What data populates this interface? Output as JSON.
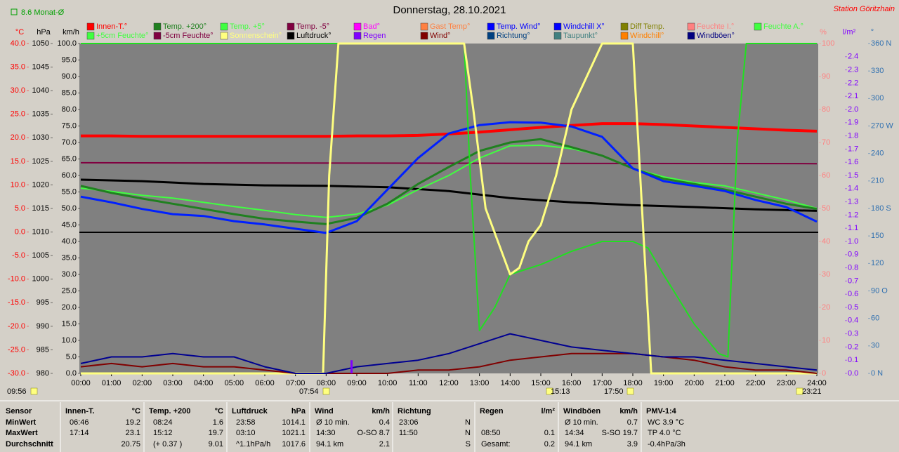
{
  "chart_data": {
    "type": "line",
    "title": "Donnerstag, 28.10.2021",
    "station": "Station Göritzhain",
    "month_avg": "8.6 Monat-Ø",
    "xlim": [
      0,
      24
    ],
    "xticks": [
      {
        "value": 0,
        "label": "00:00"
      },
      {
        "value": 1,
        "label": "01:00"
      },
      {
        "value": 2,
        "label": "02:00"
      },
      {
        "value": 3,
        "label": "03:00"
      },
      {
        "value": 4,
        "label": "04:00"
      },
      {
        "value": 5,
        "label": "05:00"
      },
      {
        "value": 6,
        "label": "06:00"
      },
      {
        "value": 7,
        "label": "07:00"
      },
      {
        "value": 8,
        "label": "08:00"
      },
      {
        "value": 9,
        "label": "09:00"
      },
      {
        "value": 10,
        "label": "10:00"
      },
      {
        "value": 11,
        "label": "11:00"
      },
      {
        "value": 12,
        "label": "12:00"
      },
      {
        "value": 13,
        "label": "13:00"
      },
      {
        "value": 14,
        "label": "14:00"
      },
      {
        "value": 15,
        "label": "15:00"
      },
      {
        "value": 16,
        "label": "16:00"
      },
      {
        "value": 17,
        "label": "17:00"
      },
      {
        "value": 18,
        "label": "18:00"
      },
      {
        "value": 19,
        "label": "19:00"
      },
      {
        "value": 20,
        "label": "20:00"
      },
      {
        "value": 21,
        "label": "21:00"
      },
      {
        "value": 22,
        "label": "22:00"
      },
      {
        "value": 23,
        "label": "23:00"
      },
      {
        "value": 24,
        "label": "24:00"
      }
    ],
    "axes": {
      "temp": {
        "label": "°C",
        "color": "#ff0000",
        "lim": [
          -30,
          40
        ],
        "ticks": [
          {
            "value": 40,
            "label": "40.0"
          },
          {
            "value": 35,
            "label": "35.0"
          },
          {
            "value": 30,
            "label": "30.0"
          },
          {
            "value": 25,
            "label": "25.0"
          },
          {
            "value": 20,
            "label": "20.0"
          },
          {
            "value": 15,
            "label": "15.0"
          },
          {
            "value": 10,
            "label": "10.0"
          },
          {
            "value": 5,
            "label": "5.0"
          },
          {
            "value": 0,
            "label": "0.0"
          },
          {
            "value": -5,
            "label": "-5.0"
          },
          {
            "value": -10,
            "label": "-10.0"
          },
          {
            "value": -15,
            "label": "-15.0"
          },
          {
            "value": -20,
            "label": "-20.0"
          },
          {
            "value": -25,
            "label": "-25.0"
          },
          {
            "value": -30,
            "label": "-30.0"
          }
        ]
      },
      "hpa": {
        "label": "hPa",
        "color": "#000000",
        "lim": [
          980,
          1050
        ],
        "ticks": [
          1050,
          1045,
          1040,
          1035,
          1030,
          1025,
          1020,
          1015,
          1010,
          1005,
          1000,
          995,
          990,
          985,
          980
        ]
      },
      "kmh": {
        "label": "km/h",
        "color": "#000000",
        "lim": [
          0,
          100
        ],
        "ticks": [
          {
            "value": 100,
            "label": "100.0"
          },
          {
            "value": 95,
            "label": "95.0"
          },
          {
            "value": 90,
            "label": "90.0"
          },
          {
            "value": 85,
            "label": "85.0"
          },
          {
            "value": 80,
            "label": "80.0"
          },
          {
            "value": 75,
            "label": "75.0"
          },
          {
            "value": 70,
            "label": "70.0"
          },
          {
            "value": 65,
            "label": "65.0"
          },
          {
            "value": 60,
            "label": "60.0"
          },
          {
            "value": 55,
            "label": "55.0"
          },
          {
            "value": 50,
            "label": "50.0"
          },
          {
            "value": 45,
            "label": "45.0"
          },
          {
            "value": 40,
            "label": "40.0"
          },
          {
            "value": 35,
            "label": "35.0"
          },
          {
            "value": 30,
            "label": "30.0"
          },
          {
            "value": 25,
            "label": "25.0"
          },
          {
            "value": 20,
            "label": "20.0"
          },
          {
            "value": 15,
            "label": "15.0"
          },
          {
            "value": 10,
            "label": "10.0"
          },
          {
            "value": 5,
            "label": "5.0"
          },
          {
            "value": 0,
            "label": "0.0"
          }
        ]
      },
      "pct": {
        "label": "%",
        "color": "#ff8080",
        "lim": [
          0,
          100
        ],
        "ticks": [
          100,
          90,
          80,
          70,
          60,
          50,
          40,
          30,
          20,
          10,
          0
        ]
      },
      "rain": {
        "label": "l/m²",
        "color": "#8000ff",
        "lim": [
          0,
          2.5
        ],
        "ticks": [
          2.4,
          2.3,
          2.2,
          2.1,
          {
            "value": 2,
            "label": "2.0"
          },
          1.9,
          1.8,
          1.7,
          1.6,
          1.5,
          1.4,
          1.3,
          1.2,
          1.1,
          {
            "value": 1,
            "label": "1.0"
          },
          0.9,
          0.8,
          0.7,
          0.6,
          0.5,
          0.4,
          0.3,
          0.2,
          0.1,
          {
            "value": 0,
            "label": "0.0"
          }
        ]
      },
      "dir": {
        "label": "°",
        "color": "#3070b0",
        "lim": [
          0,
          360
        ],
        "ticks": [
          {
            "value": 360,
            "label": "360 N"
          },
          330,
          300,
          {
            "value": 270,
            "label": "270 W"
          },
          240,
          210,
          {
            "value": 180,
            "label": "180 S"
          },
          150,
          120,
          {
            "value": 90,
            "label": "90 O"
          },
          60,
          30,
          {
            "value": 0,
            "label": "0 N"
          }
        ]
      }
    },
    "legend": [
      [
        {
          "name": "Innen-T.°",
          "color": "#ff0000"
        },
        {
          "name": "Temp. +200°",
          "color": "#208020"
        },
        {
          "name": "Temp. +5°",
          "color": "#40ff40"
        },
        {
          "name": "Temp. -5°",
          "color": "#800040"
        },
        {
          "name": "Bad°",
          "color": "#ff00ff"
        },
        {
          "name": "Gast Temp°",
          "color": "#ff8040"
        },
        {
          "name": "Temp. Wind°",
          "color": "#0000ff"
        },
        {
          "name": "Windchill X°",
          "color": "#0000ff"
        },
        {
          "name": "Diff Temp.",
          "color": "#808000"
        },
        {
          "name": "Feuchte I.°",
          "color": "#ff8080"
        },
        {
          "name": "Feuchte A.°",
          "color": "#40ff40"
        }
      ],
      [
        {
          "name": "+5cm Feuchte°",
          "color": "#40ff40"
        },
        {
          "name": "-5cm Feuchte°",
          "color": "#800040"
        },
        {
          "name": "Sonnenschein°",
          "color": "#ffff80"
        },
        {
          "name": "Luftdruck°",
          "color": "#000000"
        },
        {
          "name": "Regen",
          "color": "#8000ff"
        },
        {
          "name": "Wind°",
          "color": "#800000"
        },
        {
          "name": "Richtung°",
          "color": "#004080"
        },
        {
          "name": "Taupunkt°",
          "color": "#408080"
        },
        {
          "name": "Windchill°",
          "color": "#ff8000"
        },
        {
          "name": "Windböen°",
          "color": "#000080"
        }
      ]
    ],
    "series": [
      {
        "name": "Innen-T.°",
        "color": "#ff0000",
        "axis": "temp",
        "width": 4,
        "x": [
          0,
          1,
          2,
          3,
          4,
          5,
          6,
          7,
          8,
          9,
          10,
          11,
          12,
          13,
          14,
          15,
          16,
          17,
          18,
          19,
          20,
          21,
          22,
          23,
          24
        ],
        "values": [
          20.4,
          20.4,
          20.3,
          20.3,
          20.3,
          20.3,
          20.3,
          20.3,
          20.3,
          20.4,
          20.4,
          20.5,
          20.8,
          21.2,
          21.7,
          22.2,
          22.6,
          23.0,
          23.0,
          22.8,
          22.5,
          22.2,
          21.9,
          21.6,
          21.4
        ]
      },
      {
        "name": "Temp. -5°",
        "color": "#800040",
        "axis": "temp",
        "width": 2,
        "x": [
          0,
          24
        ],
        "values": [
          14.7,
          14.5
        ]
      },
      {
        "name": "Luftdruck°",
        "color": "#000000",
        "axis": "hpa",
        "width": 3,
        "x": [
          0,
          2,
          4,
          6,
          8,
          10,
          12,
          14,
          16,
          18,
          20,
          22,
          24
        ],
        "values": [
          1021.1,
          1020.8,
          1020.2,
          1019.9,
          1019.8,
          1019.5,
          1018.7,
          1017.2,
          1016.3,
          1015.7,
          1015.3,
          1014.8,
          1014.5
        ]
      },
      {
        "name": "Temp. +5°",
        "color": "#40ff40",
        "axis": "temp",
        "width": 2,
        "x": [
          0,
          1,
          2,
          3,
          4,
          5,
          6,
          7,
          8,
          9,
          10,
          11,
          12,
          13,
          14,
          15,
          16,
          17,
          18,
          19,
          20,
          21,
          22,
          23,
          24
        ],
        "values": [
          9.3,
          8.6,
          7.8,
          7.2,
          6.3,
          5.4,
          4.6,
          3.7,
          3.1,
          3.8,
          5.7,
          9.0,
          12.0,
          15.7,
          18.3,
          18.4,
          17.7,
          16.2,
          13.5,
          11.7,
          10.5,
          9.8,
          8.3,
          6.8,
          5.0
        ]
      },
      {
        "name": "Temp. +200°",
        "color": "#208020",
        "axis": "temp",
        "width": 3,
        "x": [
          0,
          1,
          2,
          3,
          4,
          5,
          6,
          7,
          8,
          9,
          10,
          11,
          12,
          13,
          14,
          15,
          16,
          17,
          18,
          19,
          20,
          21,
          22,
          23,
          24
        ],
        "values": [
          9.8,
          8.3,
          7.1,
          6.0,
          4.9,
          3.8,
          2.8,
          2.2,
          1.7,
          3.0,
          6.0,
          10.2,
          13.8,
          17.2,
          19.0,
          19.7,
          18.0,
          16.2,
          13.5,
          11.3,
          10.2,
          9.0,
          7.5,
          6.0,
          4.9
        ]
      },
      {
        "name": "Temp. Wind°",
        "color": "#0020ff",
        "axis": "temp",
        "width": 3,
        "x": [
          0,
          1,
          2,
          3,
          4,
          5,
          6,
          7,
          8,
          9,
          10,
          11,
          12,
          13,
          14,
          15,
          16,
          17,
          18,
          19,
          20,
          21,
          22,
          23,
          24
        ],
        "values": [
          7.5,
          6.3,
          4.9,
          3.8,
          3.4,
          2.3,
          1.6,
          0.7,
          -0.2,
          2.3,
          9.0,
          15.7,
          20.9,
          22.7,
          23.3,
          23.2,
          22.4,
          20.2,
          13.5,
          10.8,
          9.8,
          8.7,
          6.8,
          5.3,
          2.2
        ]
      },
      {
        "name": "Feuchte A.°",
        "color": "#20e020",
        "axis": "pct",
        "width": 2,
        "x": [
          0,
          12.5,
          12.7,
          13.0,
          13.5,
          14.0,
          15,
          16,
          17,
          18,
          18.5,
          19,
          20,
          20.8,
          21.1,
          21.4,
          21.7,
          24
        ],
        "values": [
          100,
          100,
          60,
          13,
          20,
          30,
          33,
          37,
          40,
          40,
          38,
          30,
          15,
          6,
          5,
          70,
          100,
          100
        ]
      },
      {
        "name": "Sonnenschein°",
        "color": "#ffff80",
        "axis": "pct",
        "width": 3,
        "x": [
          0,
          7.9,
          8.1,
          8.4,
          12.5,
          12.8,
          13.2,
          13.6,
          14.0,
          14.3,
          14.6,
          15.0,
          15.5,
          16.0,
          16.5,
          17.0,
          18.0,
          18.3,
          18.6,
          24
        ],
        "values": [
          0,
          0,
          60,
          100,
          100,
          80,
          50,
          40,
          30,
          32,
          40,
          45,
          60,
          80,
          90,
          100,
          100,
          50,
          0,
          0
        ]
      },
      {
        "name": "Wind°",
        "color": "#800000",
        "axis": "kmh",
        "width": 2,
        "x": [
          0,
          1,
          2,
          3,
          4,
          5,
          6,
          7,
          8,
          9,
          10,
          11,
          12,
          13,
          14,
          15,
          16,
          17,
          18,
          19,
          20,
          21,
          22,
          23,
          24
        ],
        "values": [
          2,
          3,
          2,
          3,
          2,
          2,
          1,
          0,
          0,
          0,
          0,
          1,
          1,
          2,
          4,
          5,
          6,
          6,
          6,
          5,
          4,
          2,
          1,
          1,
          0
        ]
      },
      {
        "name": "Windböen°",
        "color": "#000090",
        "axis": "kmh",
        "width": 2,
        "x": [
          0,
          1,
          2,
          3,
          4,
          5,
          6,
          7,
          8,
          9,
          10,
          11,
          12,
          13,
          14,
          15,
          16,
          17,
          18,
          19,
          20,
          21,
          22,
          23,
          24
        ],
        "values": [
          3,
          5,
          5,
          6,
          5,
          5,
          2,
          0,
          0,
          2,
          3,
          4,
          6,
          9,
          12,
          10,
          8,
          7,
          6,
          5,
          5,
          4,
          3,
          2,
          1
        ]
      },
      {
        "name": "Regen",
        "color": "#8000ff",
        "axis": "rain",
        "style": "bar",
        "x": [
          8.83
        ],
        "values": [
          0.1
        ]
      }
    ],
    "time_markers": [
      "09:56",
      "07:54",
      "15:13",
      "17:50",
      "23:21"
    ],
    "stats": {
      "row_labels": [
        "Sensor",
        "MinWert",
        "MaxWert",
        "Durchschnitt"
      ],
      "columns": [
        {
          "name": "Innen-T.",
          "unit": "°C",
          "rows": [
            {
              "time": "06:46",
              "value": 19.2
            },
            {
              "time": "17:14",
              "value": 23.1
            },
            {
              "value": 20.75
            }
          ]
        },
        {
          "name": "Temp. +200",
          "unit": "°C",
          "rows": [
            {
              "time": "08:24",
              "value": 1.6
            },
            {
              "time": "15:12",
              "value": 19.7
            },
            {
              "time": "(+ 0.37 )",
              "value": 9.01
            }
          ]
        },
        {
          "name": "Luftdruck",
          "unit": "hPa",
          "rows": [
            {
              "time": "23:58",
              "value": 1014.1
            },
            {
              "time": "03:10",
              "value": 1021.1
            },
            {
              "time": "^1.1hPa/h",
              "value": 1017.6
            }
          ]
        },
        {
          "name": "Wind",
          "unit": "km/h",
          "rows": [
            {
              "time": "Ø 10 min.",
              "value": 0.4
            },
            {
              "time": "14:30",
              "value": "O-SO 8.7"
            },
            {
              "time": "94.1 km",
              "value": 2.1
            }
          ]
        },
        {
          "name": "Richtung",
          "rows": [
            {
              "time": "23:06",
              "value": "N"
            },
            {
              "time": "11:50",
              "value": "N"
            },
            {
              "value": "S"
            }
          ]
        },
        {
          "name": "Regen",
          "unit": "l/m²",
          "rows": [
            {},
            {
              "time": "08:50",
              "value": 0.1
            },
            {
              "time": "Gesamt:",
              "value": 0.2
            }
          ]
        },
        {
          "name": "Windböen",
          "unit": "km/h",
          "rows": [
            {
              "time": "Ø 10 min.",
              "value": 0.7
            },
            {
              "time": "14:34",
              "value": "S-SO 19.7"
            },
            {
              "time": "94.1 km",
              "value": 3.9
            }
          ]
        },
        {
          "name": "PMV-1:4",
          "rows": [
            {
              "time": "WC 3.9 °C"
            },
            {
              "time": "TP 4.0 °C"
            },
            {
              "time": "-0.4hPa/3h"
            }
          ]
        }
      ]
    }
  }
}
